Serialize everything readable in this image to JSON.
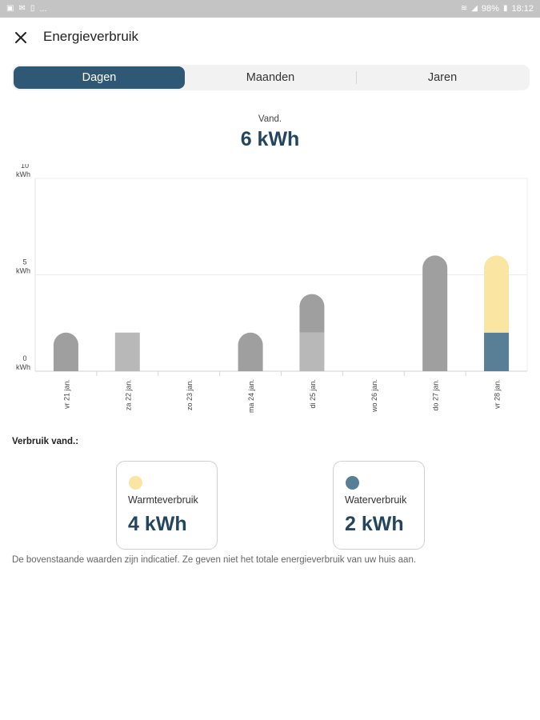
{
  "status_bar": {
    "left_dots": "...",
    "battery_text": "98%",
    "time": "18:12"
  },
  "header": {
    "title": "Energieverbruik"
  },
  "tabs": [
    {
      "label": "Dagen",
      "active": true
    },
    {
      "label": "Maanden",
      "active": false
    },
    {
      "label": "Jaren",
      "active": false
    }
  ],
  "summary": {
    "label": "Vand.",
    "value": "6 kWh"
  },
  "colors": {
    "accent": "#2e5873",
    "value_text": "#23465e",
    "warm": "#fbe5a3",
    "water": "#587f95",
    "bar_dark": "#9f9f9f",
    "bar_light": "#b8b8b8"
  },
  "chart_data": {
    "type": "bar",
    "stacked": true,
    "categories": [
      "vr 21 jan.",
      "za 22 jan.",
      "zo 23 jan.",
      "ma 24 jan.",
      "di 25 jan.",
      "wo 26 jan.",
      "do 27 jan.",
      "vr 28 jan."
    ],
    "series": [
      {
        "values": [
          2,
          2,
          0,
          2,
          2,
          0,
          0,
          2
        ]
      },
      {
        "values": [
          0,
          0,
          0,
          0,
          2,
          0,
          6,
          4
        ]
      }
    ],
    "highlight_index": 7,
    "ylim": [
      0,
      10
    ],
    "yticks": [
      {
        "value": 10,
        "label": "10",
        "unit": "kWh"
      },
      {
        "value": 5,
        "label": "5",
        "unit": "kWh"
      },
      {
        "value": 0,
        "label": "0",
        "unit": "kWh"
      }
    ],
    "grid": true
  },
  "breakdown": {
    "title": "Verbruik vand.:",
    "cards": [
      {
        "label": "Warmteverbruik",
        "value": "4 kWh",
        "dot_color": "#fbe5a3"
      },
      {
        "label": "Waterverbruik",
        "value": "2 kWh",
        "dot_color": "#587f95"
      }
    ]
  },
  "disclaimer": "De bovenstaande waarden zijn indicatief. Ze geven niet het totale energieverbruik van uw huis aan."
}
